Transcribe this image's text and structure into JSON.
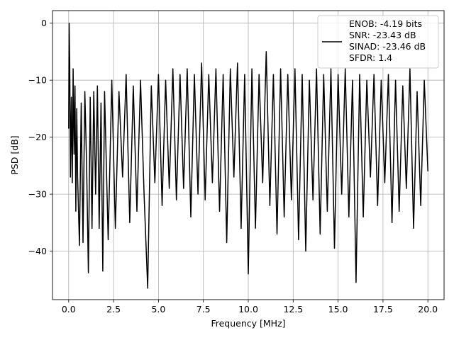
{
  "chart_data": {
    "type": "line",
    "xlabel": "Frequency [MHz]",
    "ylabel": "PSD [dB]",
    "xlim": [
      -0.9,
      20.9
    ],
    "ylim": [
      -48.5,
      2.2
    ],
    "xticks": [
      0.0,
      2.5,
      5.0,
      7.5,
      10.0,
      12.5,
      15.0,
      17.5,
      20.0
    ],
    "xtick_labels": [
      "0.0",
      "2.5",
      "5.0",
      "7.5",
      "10.0",
      "12.5",
      "15.0",
      "17.5",
      "20.0"
    ],
    "yticks": [
      0,
      -10,
      -20,
      -30,
      -40
    ],
    "ytick_labels": [
      "0",
      "−10",
      "−20",
      "−30",
      "−40"
    ],
    "grid": true,
    "legend_position": "top-right",
    "legend_lines": [
      "ENOB: -4.19 bits",
      "SNR: -23.43 dB",
      "SINAD: -23.46 dB",
      "SFDR: 1.4"
    ],
    "series": [
      {
        "color": "#000000",
        "x": [
          0.0,
          0.03,
          0.06,
          0.1,
          0.15,
          0.2,
          0.25,
          0.3,
          0.35,
          0.4,
          0.45,
          0.5,
          0.6,
          0.7,
          0.8,
          0.9,
          1.0,
          1.1,
          1.2,
          1.3,
          1.4,
          1.5,
          1.6,
          1.7,
          1.8,
          1.9,
          2.0,
          2.2,
          2.4,
          2.6,
          2.8,
          3.0,
          3.2,
          3.4,
          3.6,
          3.8,
          4.0,
          4.2,
          4.4,
          4.6,
          4.8,
          5.0,
          5.2,
          5.4,
          5.6,
          5.8,
          6.0,
          6.2,
          6.4,
          6.6,
          6.8,
          7.0,
          7.2,
          7.4,
          7.6,
          7.8,
          8.0,
          8.2,
          8.4,
          8.6,
          8.8,
          9.0,
          9.2,
          9.4,
          9.6,
          9.8,
          10.0,
          10.2,
          10.4,
          10.6,
          10.8,
          11.0,
          11.2,
          11.4,
          11.6,
          11.8,
          12.0,
          12.2,
          12.4,
          12.6,
          12.8,
          13.0,
          13.2,
          13.4,
          13.6,
          13.8,
          14.0,
          14.2,
          14.4,
          14.6,
          14.8,
          15.0,
          15.2,
          15.4,
          15.6,
          15.8,
          16.0,
          16.2,
          16.4,
          16.6,
          16.8,
          17.0,
          17.2,
          17.4,
          17.6,
          17.8,
          18.0,
          18.2,
          18.4,
          18.6,
          18.8,
          19.0,
          19.2,
          19.4,
          19.6,
          19.8,
          20.0
        ],
        "y": [
          -18.5,
          0.0,
          -7.0,
          -27.0,
          -13.0,
          -28.0,
          -8.0,
          -23.0,
          -11.0,
          -33.0,
          -15.0,
          -27.0,
          -39.0,
          -14.0,
          -38.5,
          -12.0,
          -25.0,
          -43.8,
          -13.0,
          -36.0,
          -12.0,
          -30.0,
          -11.0,
          -36.0,
          -14.0,
          -43.5,
          -12.0,
          -38.0,
          -10.0,
          -36.0,
          -12.0,
          -27.0,
          -9.0,
          -35.0,
          -11.0,
          -33.0,
          -10.0,
          -30.0,
          -46.5,
          -11.0,
          -28.0,
          -9.0,
          -32.0,
          -10.0,
          -29.0,
          -8.0,
          -31.0,
          -9.0,
          -29.0,
          -8.0,
          -34.0,
          -9.0,
          -30.0,
          -7.0,
          -31.0,
          -9.0,
          -28.0,
          -8.0,
          -33.0,
          -9.0,
          -38.5,
          -8.0,
          -27.0,
          -7.0,
          -36.0,
          -9.0,
          -44.0,
          -8.0,
          -36.0,
          -9.0,
          -28.0,
          -5.0,
          -32.0,
          -9.0,
          -37.0,
          -8.0,
          -34.0,
          -9.0,
          -31.0,
          -8.0,
          -38.0,
          -9.0,
          -40.0,
          -10.0,
          -31.0,
          -8.0,
          -37.0,
          -9.0,
          -33.0,
          -8.0,
          -39.5,
          -9.0,
          -30.0,
          -8.0,
          -34.0,
          -10.0,
          -45.5,
          -9.0,
          -34.0,
          -10.0,
          -27.0,
          -9.0,
          -32.0,
          -10.0,
          -28.0,
          -9.0,
          -35.0,
          -10.0,
          -33.0,
          -11.0,
          -29.0,
          -8.0,
          -36.0,
          -12.0,
          -32.0,
          -10.0,
          -26.0
        ]
      }
    ]
  }
}
